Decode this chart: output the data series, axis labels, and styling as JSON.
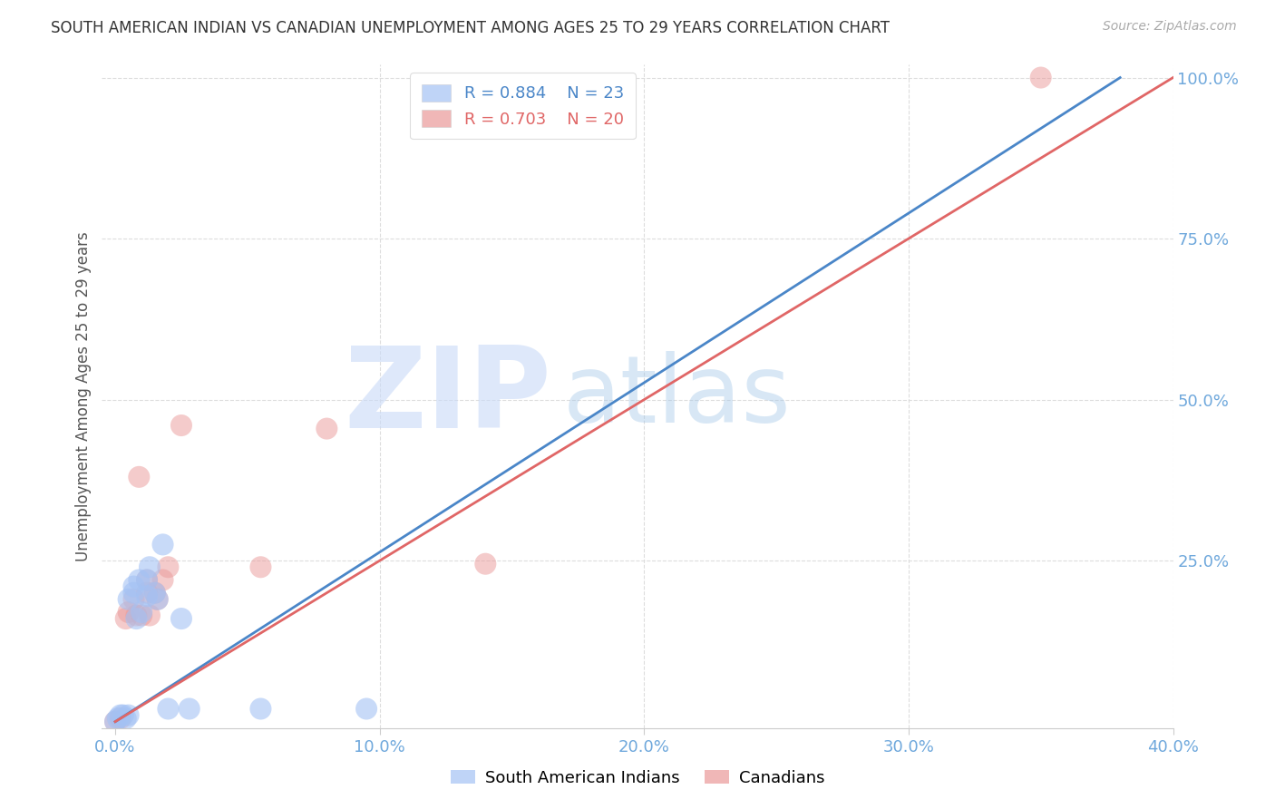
{
  "title": "SOUTH AMERICAN INDIAN VS CANADIAN UNEMPLOYMENT AMONG AGES 25 TO 29 YEARS CORRELATION CHART",
  "source": "Source: ZipAtlas.com",
  "ylabel": "Unemployment Among Ages 25 to 29 years",
  "x_tick_labels": [
    "0.0%",
    "10.0%",
    "20.0%",
    "30.0%",
    "40.0%"
  ],
  "x_tick_values": [
    0.0,
    0.1,
    0.2,
    0.3,
    0.4
  ],
  "y_tick_labels": [
    "100.0%",
    "75.0%",
    "50.0%",
    "25.0%"
  ],
  "y_tick_values": [
    1.0,
    0.75,
    0.5,
    0.25
  ],
  "xlim": [
    -0.005,
    0.4
  ],
  "ylim": [
    -0.01,
    1.02
  ],
  "blue_R": 0.884,
  "blue_N": 23,
  "pink_R": 0.703,
  "pink_N": 20,
  "blue_color": "#a4c2f4",
  "pink_color": "#ea9999",
  "blue_line_color": "#4a86c8",
  "pink_line_color": "#e06666",
  "tick_color": "#6fa8dc",
  "watermark_zip": "ZIP",
  "watermark_atlas": "atlas",
  "legend_label_blue": "South American Indians",
  "legend_label_pink": "Canadians",
  "blue_points_x": [
    0.0,
    0.001,
    0.002,
    0.003,
    0.004,
    0.005,
    0.005,
    0.007,
    0.007,
    0.008,
    0.009,
    0.01,
    0.012,
    0.012,
    0.013,
    0.015,
    0.016,
    0.018,
    0.02,
    0.025,
    0.028,
    0.055,
    0.095
  ],
  "blue_points_y": [
    0.0,
    0.005,
    0.01,
    0.01,
    0.005,
    0.01,
    0.19,
    0.2,
    0.21,
    0.16,
    0.22,
    0.17,
    0.195,
    0.22,
    0.24,
    0.2,
    0.19,
    0.275,
    0.02,
    0.16,
    0.02,
    0.02,
    0.02
  ],
  "pink_points_x": [
    0.0,
    0.002,
    0.004,
    0.005,
    0.007,
    0.008,
    0.009,
    0.01,
    0.012,
    0.012,
    0.013,
    0.015,
    0.016,
    0.018,
    0.02,
    0.025,
    0.055,
    0.08,
    0.14,
    0.35
  ],
  "pink_points_y": [
    0.0,
    0.005,
    0.16,
    0.17,
    0.19,
    0.165,
    0.38,
    0.165,
    0.2,
    0.22,
    0.165,
    0.2,
    0.19,
    0.22,
    0.24,
    0.46,
    0.24,
    0.455,
    0.245,
    1.0
  ],
  "blue_line_x0": 0.0,
  "blue_line_y0": 0.0,
  "blue_line_x1": 0.38,
  "blue_line_y1": 1.0,
  "pink_line_x0": 0.0,
  "pink_line_y0": 0.0,
  "pink_line_x1": 0.4,
  "pink_line_y1": 1.0,
  "grid_color": "#dddddd",
  "grid_linestyle": "--"
}
